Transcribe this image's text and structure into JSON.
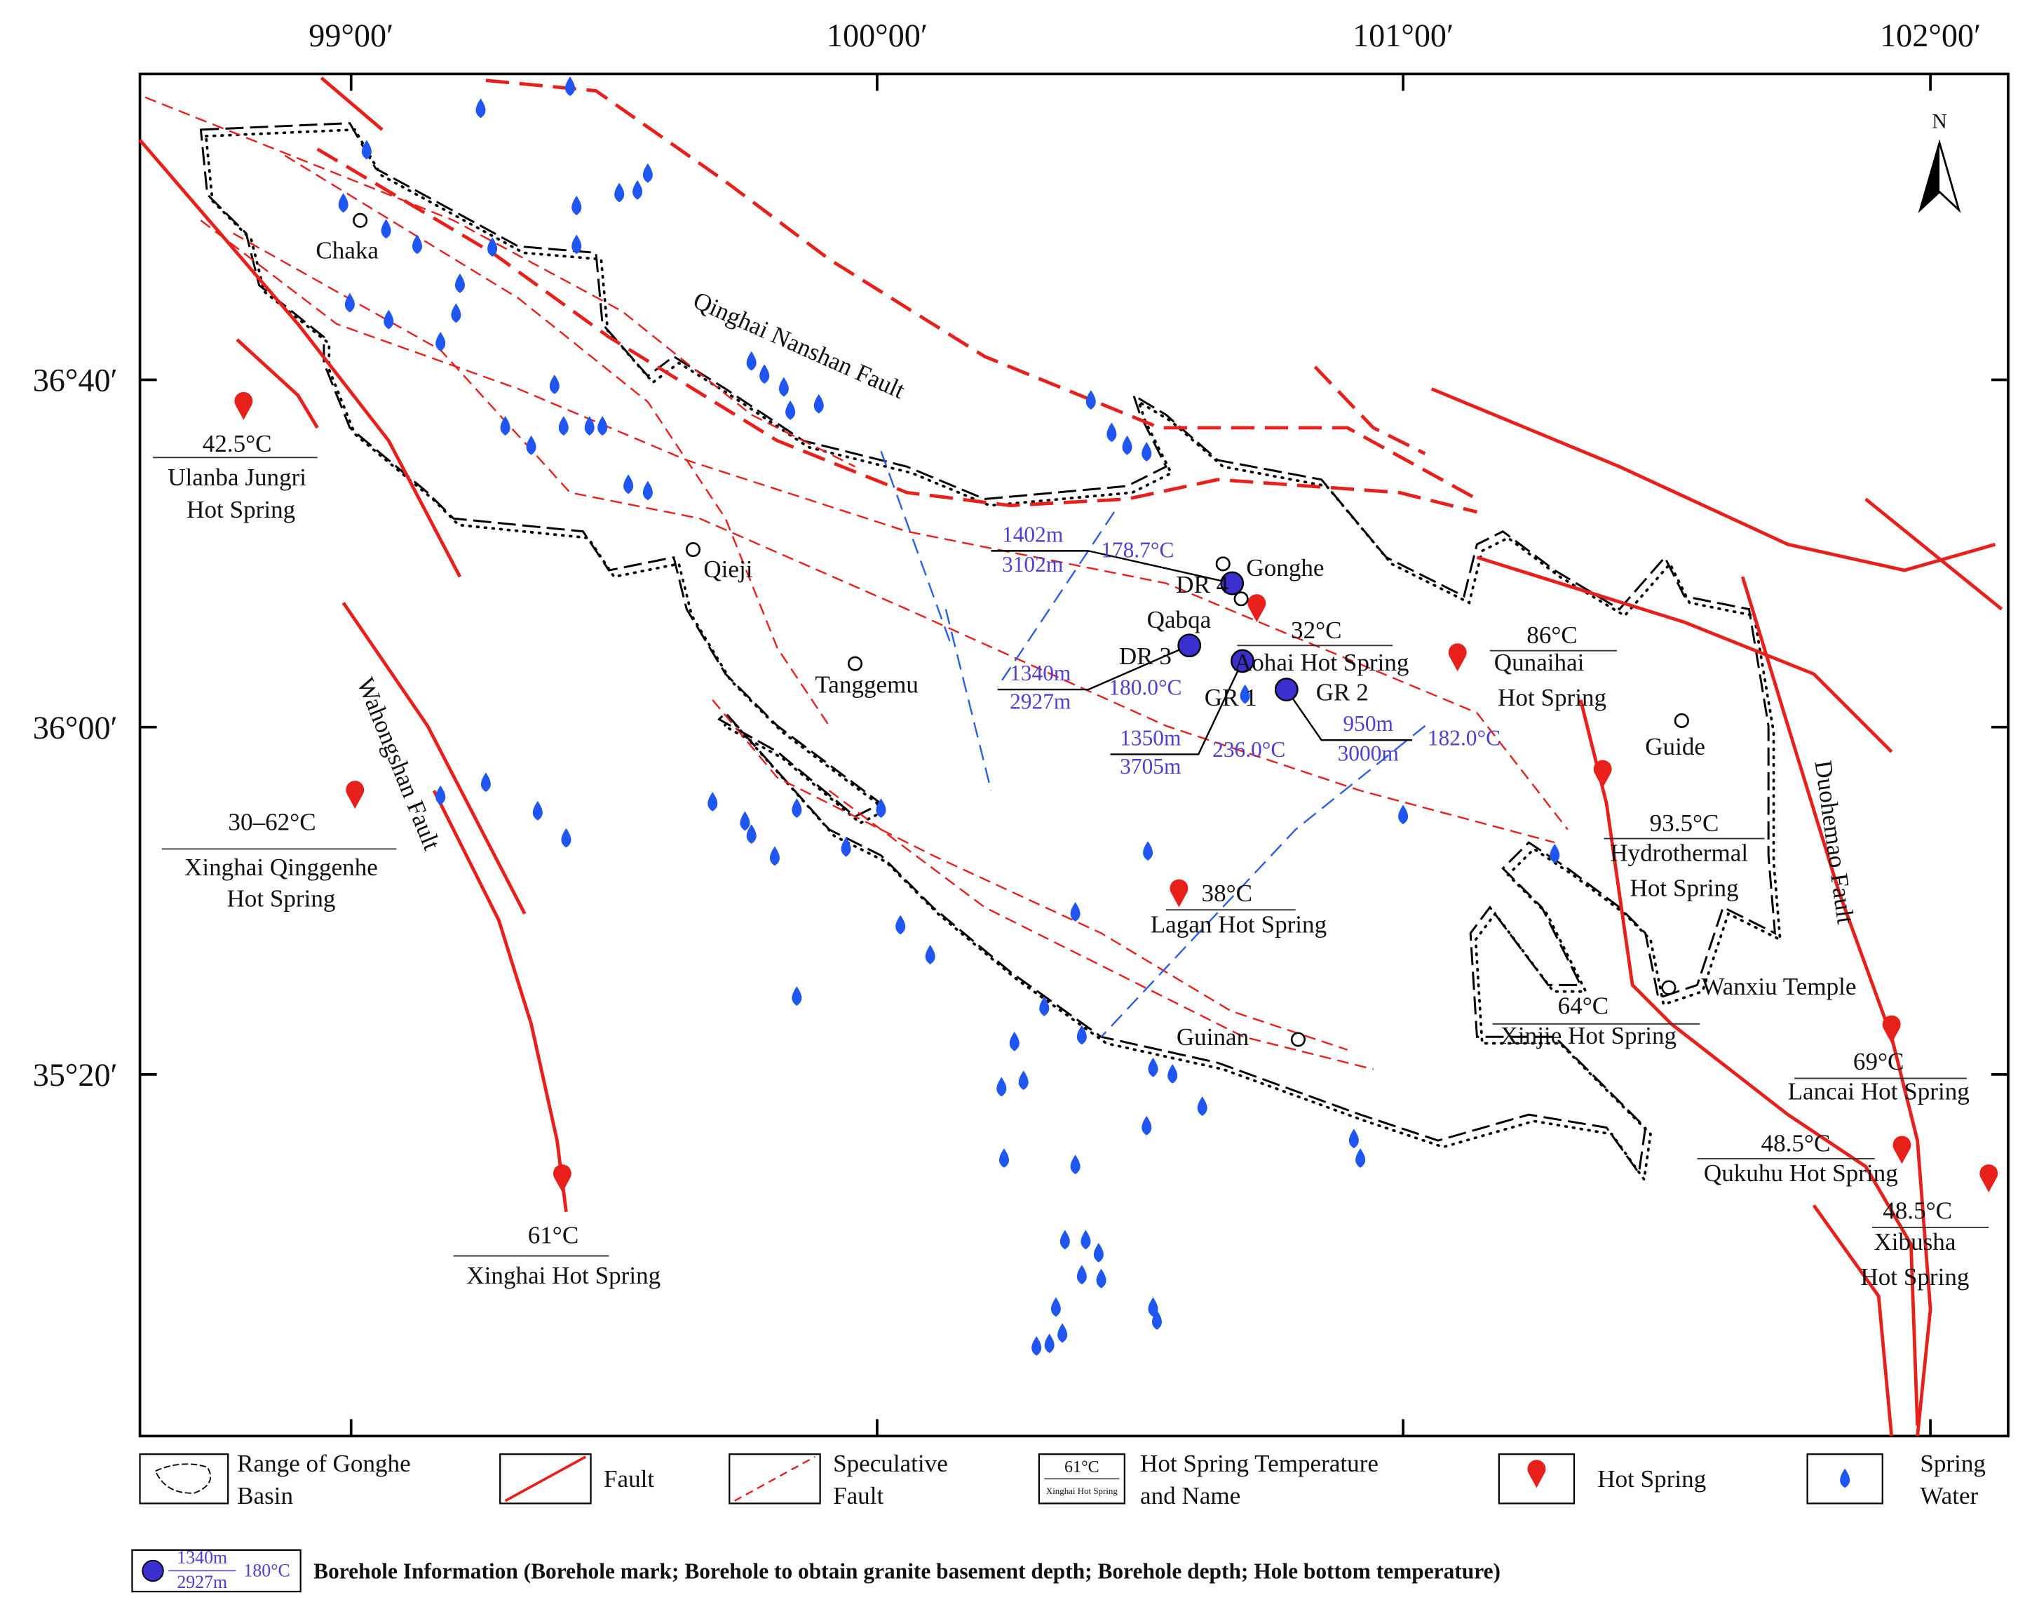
{
  "map": {
    "longitude_labels": [
      "99°00′",
      "100°00′",
      "101°00′",
      "102°00′"
    ],
    "latitude_labels": [
      "36°40′",
      "36°00′",
      "35°20′"
    ],
    "north_arrow": "N",
    "places": [
      "Chaka",
      "Qieji",
      "Tanggemu",
      "Gonghe",
      "Qabqa",
      "Guide",
      "Guinan",
      "Wanxiu Temple"
    ],
    "faults": [
      "Qinghai Nanshan Fault",
      "Wahongshan Fault",
      "Duohemao Fault"
    ],
    "hot_springs": [
      {
        "temperature": "42.5°C",
        "name": [
          "Ulanba Jungri",
          "Hot Spring"
        ]
      },
      {
        "temperature": "30–62°C",
        "name": [
          "Xinghai Qinggenhe",
          "Hot Spring"
        ]
      },
      {
        "temperature": "61°C",
        "name": [
          "Xinghai Hot Spring"
        ]
      },
      {
        "temperature": "38°C",
        "name": [
          "Lagan Hot Spring"
        ]
      },
      {
        "temperature": "32°C",
        "name": [
          "Aohai Hot Spring"
        ]
      },
      {
        "temperature": "86°C",
        "name": [
          "Qunaihai",
          "Hot Spring"
        ]
      },
      {
        "temperature": "93.5°C",
        "name": [
          "Hydrothermal",
          "Hot Spring"
        ]
      },
      {
        "temperature": "64°C",
        "name": [
          "Xinjie Hot Spring"
        ]
      },
      {
        "temperature": "69°C",
        "name": [
          "Lancai Hot Spring"
        ]
      },
      {
        "temperature": "48.5°C",
        "name": [
          "Qukuhu Hot Spring"
        ]
      },
      {
        "temperature": "48.5°C",
        "name": [
          "Xibusha",
          "Hot Spring"
        ]
      }
    ],
    "boreholes": [
      {
        "id": "DR 4",
        "basement_depth": "1402m",
        "depth": "3102m",
        "bottom_temperature": "178.7°C"
      },
      {
        "id": "DR 3",
        "basement_depth": "1340m",
        "depth": "2927m",
        "bottom_temperature": "180.0°C"
      },
      {
        "id": "GR 1",
        "basement_depth": "1350m",
        "depth": "3705m",
        "bottom_temperature": "236.0°C"
      },
      {
        "id": "GR 2",
        "basement_depth": "950m",
        "depth": "3000m",
        "bottom_temperature": "182.0°C"
      }
    ]
  },
  "legend": {
    "basin": [
      "Range of Gonghe",
      "Basin"
    ],
    "fault": "Fault",
    "speculative_fault": [
      "Speculative",
      "Fault"
    ],
    "hot_spring_label": {
      "sample_temperature": "61°C",
      "sample_name": "Xinghai Hot Spring",
      "text": [
        "Hot Spring Temperature",
        "and Name"
      ]
    },
    "hot_spring": "Hot Spring",
    "spring_water": [
      "Spring",
      "Water"
    ],
    "borehole": {
      "sample_basement_depth": "1340m",
      "sample_depth": "2927m",
      "sample_temperature": "180°C",
      "text": "Borehole Information (Borehole mark; Borehole to obtain granite basement depth; Borehole depth; Hole bottom temperature)"
    }
  }
}
